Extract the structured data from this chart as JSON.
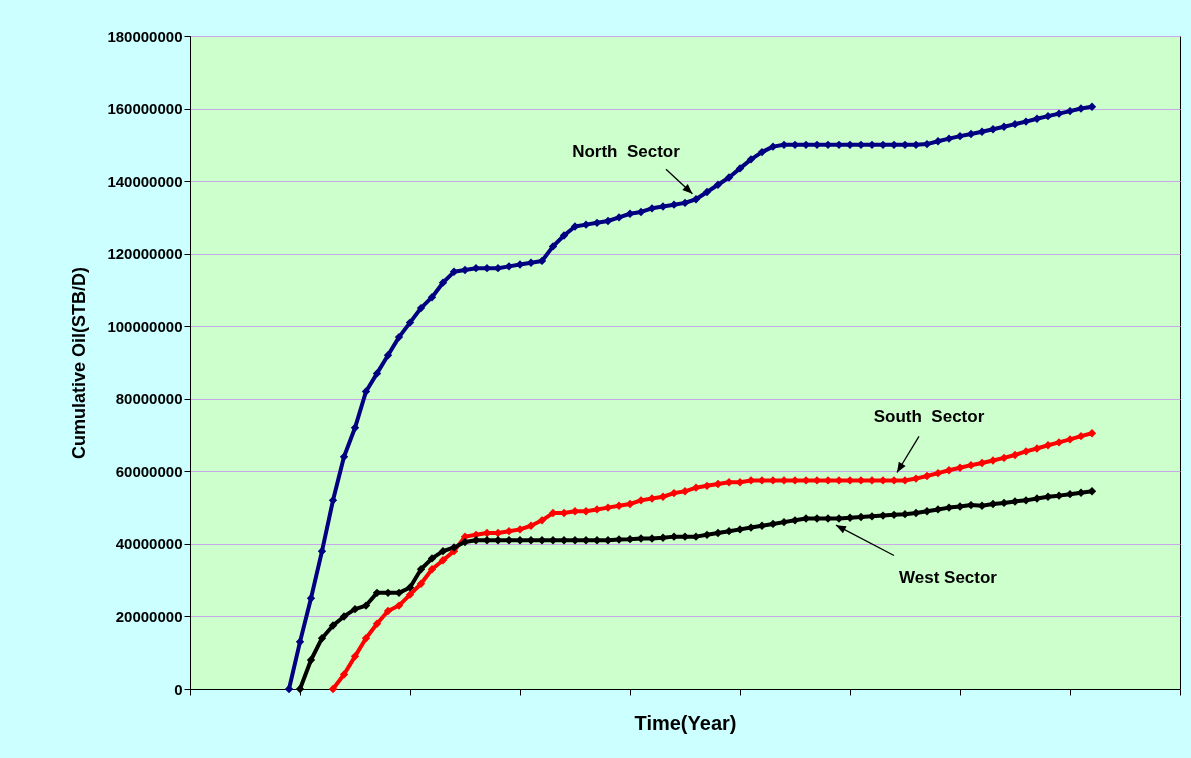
{
  "chart_data": {
    "type": "line",
    "xlabel": "Time(Year)",
    "ylabel": "Cumulative Oil(STB/D)",
    "categories": [
      null,
      null,
      null,
      null,
      null,
      null,
      null,
      null,
      null,
      null,
      null,
      null,
      null,
      null,
      null,
      null,
      null,
      null,
      null,
      null,
      null,
      null,
      null,
      null,
      null,
      null,
      null,
      null,
      null,
      null,
      null,
      null,
      null,
      null,
      null,
      null,
      null,
      null,
      null,
      null,
      null,
      null,
      null,
      null,
      null,
      null,
      null,
      null,
      null,
      null,
      null,
      null,
      null,
      null,
      null,
      null,
      null,
      null,
      null,
      null,
      null,
      null,
      null,
      null,
      null,
      null,
      null,
      null,
      null,
      null,
      null,
      null,
      null,
      null,
      null,
      null,
      null,
      null,
      null,
      null,
      null,
      null,
      null,
      null,
      null,
      null,
      null,
      null,
      null,
      null,
      null
    ],
    "ylim": [
      0,
      180000000
    ],
    "yticks": [
      0,
      20000000,
      40000000,
      60000000,
      80000000,
      100000000,
      120000000,
      140000000,
      160000000,
      180000000
    ],
    "grid": "y",
    "legend": false,
    "marker": "diamond",
    "line_style": "solid",
    "series": [
      {
        "name": "North  Sector",
        "color": "#000080",
        "values": [
          null,
          null,
          null,
          null,
          null,
          null,
          null,
          null,
          null,
          0,
          13000000,
          25000000,
          38000000,
          52000000,
          64000000,
          72000000,
          82000000,
          87000000,
          92000000,
          97000000,
          101000000,
          105000000,
          108000000,
          112000000,
          115000000,
          115500000,
          116000000,
          116000000,
          116000000,
          116500000,
          117000000,
          117500000,
          118000000,
          122000000,
          125000000,
          127500000,
          128000000,
          128500000,
          129000000,
          130000000,
          131000000,
          131500000,
          132500000,
          133000000,
          133500000,
          134000000,
          135000000,
          137000000,
          139000000,
          141000000,
          143500000,
          146000000,
          148000000,
          149500000,
          150000000,
          150000000,
          150000000,
          150000000,
          150000000,
          150000000,
          150000000,
          150000000,
          150000000,
          150000000,
          150000000,
          150000000,
          150000000,
          150200000,
          151000000,
          151700000,
          152400000,
          153000000,
          153600000,
          154300000,
          155000000,
          155700000,
          156400000,
          157200000,
          157900000,
          158600000,
          159300000,
          160000000,
          160500000,
          null,
          null,
          null,
          null,
          null,
          null,
          null,
          null
        ]
      },
      {
        "name": "South  Sector",
        "color": "#ff0000",
        "values": [
          null,
          null,
          null,
          null,
          null,
          null,
          null,
          null,
          null,
          null,
          null,
          null,
          null,
          0,
          4000000,
          9000000,
          14000000,
          18000000,
          21500000,
          23000000,
          26000000,
          29000000,
          33000000,
          35500000,
          38000000,
          42000000,
          42500000,
          43000000,
          43000000,
          43500000,
          44000000,
          45000000,
          46500000,
          48500000,
          48500000,
          49000000,
          49000000,
          49500000,
          50000000,
          50500000,
          51000000,
          52000000,
          52500000,
          53000000,
          54000000,
          54500000,
          55500000,
          56000000,
          56500000,
          57000000,
          57000000,
          57500000,
          57500000,
          57500000,
          57500000,
          57500000,
          57500000,
          57500000,
          57500000,
          57500000,
          57500000,
          57500000,
          57500000,
          57500000,
          57500000,
          57500000,
          58000000,
          58700000,
          59500000,
          60300000,
          61000000,
          61700000,
          62300000,
          63000000,
          63700000,
          64500000,
          65500000,
          66300000,
          67200000,
          68000000,
          68800000,
          69700000,
          70500000,
          null,
          null,
          null,
          null,
          null,
          null,
          null,
          null
        ]
      },
      {
        "name": "West Sector",
        "color": "#000000",
        "values": [
          null,
          null,
          null,
          null,
          null,
          null,
          null,
          null,
          null,
          null,
          0,
          8000000,
          14000000,
          17500000,
          20000000,
          22000000,
          23000000,
          26500000,
          26500000,
          26500000,
          28000000,
          33000000,
          36000000,
          38000000,
          39000000,
          40500000,
          41000000,
          41000000,
          41000000,
          41000000,
          41000000,
          41000000,
          41000000,
          41000000,
          41000000,
          41000000,
          41000000,
          41000000,
          41000000,
          41200000,
          41300000,
          41500000,
          41500000,
          41700000,
          42000000,
          42000000,
          42000000,
          42500000,
          43000000,
          43500000,
          44000000,
          44500000,
          45000000,
          45500000,
          46000000,
          46500000,
          47000000,
          47000000,
          47000000,
          47000000,
          47200000,
          47400000,
          47600000,
          47800000,
          48000000,
          48200000,
          48500000,
          49000000,
          49500000,
          50000000,
          50300000,
          50700000,
          50500000,
          51000000,
          51300000,
          51700000,
          52000000,
          52500000,
          53000000,
          53300000,
          53700000,
          54100000,
          54500000,
          null,
          null,
          null,
          null,
          null,
          null,
          null,
          null
        ]
      }
    ]
  }
}
